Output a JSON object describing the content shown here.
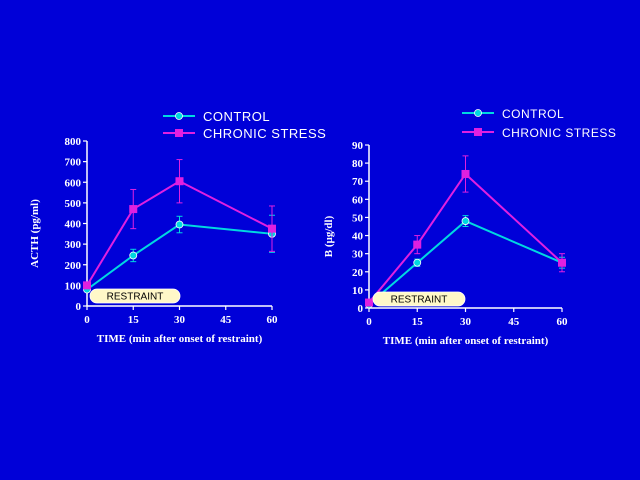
{
  "colors": {
    "background": "#0000d8",
    "axis": "#ffffff",
    "control": "#00d8e0",
    "chronic_stress": "#e020e0",
    "restraint_fill": "#fff8c8"
  },
  "chart_data": [
    {
      "type": "line",
      "title": "",
      "xlabel": "TIME (min after onset of restraint)",
      "ylabel": "ACTH (pg/ml)",
      "x_ticks": [
        0,
        15,
        30,
        45,
        60
      ],
      "y_ticks": [
        0,
        100,
        200,
        300,
        400,
        500,
        600,
        700,
        800
      ],
      "xlim": [
        0,
        60
      ],
      "ylim": [
        0,
        800
      ],
      "grid": false,
      "legend_position": "top",
      "restraint_label": "RESTRAINT",
      "series": [
        {
          "name": "CONTROL",
          "x": [
            0,
            15,
            30,
            60
          ],
          "y": [
            80,
            245,
            395,
            350
          ],
          "err": [
            10,
            30,
            40,
            90
          ],
          "marker": "circle",
          "color": "#00d8e0"
        },
        {
          "name": "CHRONIC STRESS",
          "x": [
            0,
            15,
            30,
            60
          ],
          "y": [
            100,
            470,
            605,
            375
          ],
          "err": [
            10,
            95,
            105,
            110
          ],
          "marker": "square",
          "color": "#e020e0"
        }
      ]
    },
    {
      "type": "line",
      "title": "",
      "xlabel": "TIME (min after onset of restraint)",
      "ylabel": "B (µg/dl)",
      "x_ticks": [
        0,
        15,
        30,
        45,
        60
      ],
      "y_ticks": [
        0,
        10,
        20,
        30,
        40,
        50,
        60,
        70,
        80,
        90
      ],
      "xlim": [
        0,
        60
      ],
      "ylim": [
        0,
        90
      ],
      "grid": false,
      "legend_position": "top",
      "restraint_label": "RESTRAINT",
      "series": [
        {
          "name": "CONTROL",
          "x": [
            0,
            15,
            30,
            60
          ],
          "y": [
            2,
            25,
            48,
            25
          ],
          "err": [
            1,
            2,
            3,
            3
          ],
          "marker": "circle",
          "color": "#00d8e0"
        },
        {
          "name": "CHRONIC STRESS",
          "x": [
            0,
            15,
            30,
            60
          ],
          "y": [
            3,
            35,
            74,
            25
          ],
          "err": [
            1,
            5,
            10,
            5
          ],
          "marker": "square",
          "color": "#e020e0"
        }
      ]
    }
  ]
}
